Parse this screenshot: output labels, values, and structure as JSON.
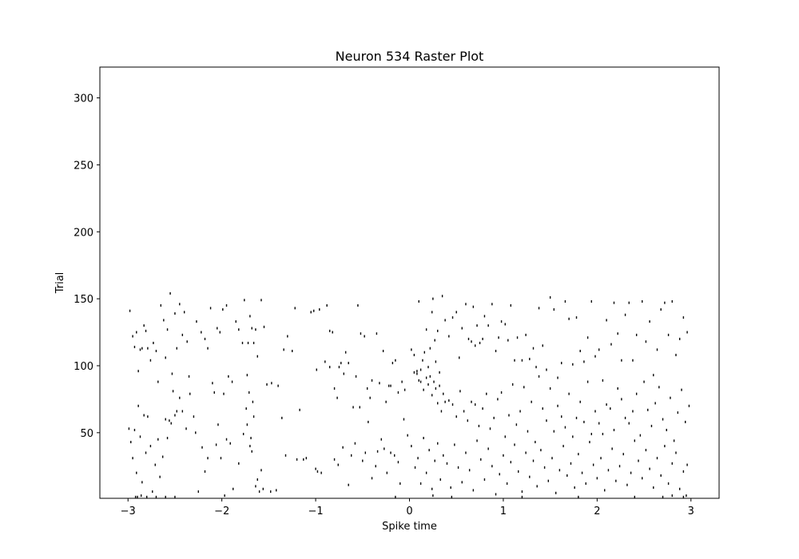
{
  "chart_data": {
    "type": "scatter",
    "subtype": "raster",
    "title": "Neuron 534 Raster Plot",
    "xlabel": "Spike time",
    "ylabel": "Trial",
    "xlim": [
      -3.3,
      3.3
    ],
    "ylim": [
      1,
      323
    ],
    "xticks": [
      -3,
      -2,
      -1,
      0,
      1,
      2,
      3
    ],
    "xtick_labels": [
      "−3",
      "−2",
      "−1",
      "0",
      "1",
      "2",
      "3"
    ],
    "yticks": [
      50,
      100,
      150,
      200,
      250,
      300
    ],
    "ytick_labels": [
      "50",
      "100",
      "150",
      "200",
      "250",
      "300"
    ],
    "grid": false,
    "legend": "none",
    "mark_color": "#000000",
    "trials_shown": 154,
    "spike_time_range": [
      -3,
      3
    ],
    "spikes": [
      [
        -2.98,
        141
      ],
      [
        -2.95,
        122
      ],
      [
        -2.93,
        114
      ],
      [
        -2.91,
        125
      ],
      [
        -2.89,
        96
      ],
      [
        -2.87,
        112
      ],
      [
        -2.85,
        113
      ],
      [
        -2.83,
        130
      ],
      [
        -2.81,
        126
      ],
      [
        -2.79,
        113
      ],
      [
        -2.76,
        104
      ],
      [
        -2.73,
        117
      ],
      [
        -2.7,
        111
      ],
      [
        -2.68,
        88
      ],
      [
        -2.65,
        145
      ],
      [
        -2.62,
        134
      ],
      [
        -2.6,
        106
      ],
      [
        -2.58,
        127
      ],
      [
        -2.55,
        154
      ],
      [
        -2.53,
        94
      ],
      [
        -2.5,
        139
      ],
      [
        -2.48,
        113
      ],
      [
        -2.45,
        146
      ],
      [
        -2.42,
        123
      ],
      [
        -2.4,
        140
      ],
      [
        -2.37,
        118
      ],
      [
        -2.35,
        92
      ],
      [
        -2.3,
        62
      ],
      [
        -2.27,
        133
      ],
      [
        -2.22,
        125
      ],
      [
        -2.18,
        120
      ],
      [
        -2.15,
        113
      ],
      [
        -2.12,
        143
      ],
      [
        -2.08,
        80
      ],
      [
        -2.05,
        128
      ],
      [
        -2.02,
        125
      ],
      [
        -1.99,
        142
      ],
      [
        -1.95,
        145
      ],
      [
        -1.93,
        92
      ],
      [
        -1.89,
        88
      ],
      [
        -1.85,
        133
      ],
      [
        -1.82,
        127
      ],
      [
        -1.78,
        117
      ],
      [
        -1.76,
        149
      ],
      [
        -1.73,
        93
      ],
      [
        -1.72,
        117
      ],
      [
        -1.7,
        137
      ],
      [
        -1.68,
        128
      ],
      [
        -1.66,
        117
      ],
      [
        -1.64,
        127
      ],
      [
        -1.62,
        107
      ],
      [
        -1.58,
        149
      ],
      [
        -1.55,
        129
      ],
      [
        -2.99,
        53
      ],
      [
        -2.97,
        43
      ],
      [
        -2.95,
        31
      ],
      [
        -2.93,
        52
      ],
      [
        -2.91,
        20
      ],
      [
        -2.89,
        70
      ],
      [
        -2.87,
        47
      ],
      [
        -2.85,
        13
      ],
      [
        -2.83,
        63
      ],
      [
        -2.81,
        35
      ],
      [
        -2.79,
        62
      ],
      [
        -2.76,
        40
      ],
      [
        -2.74,
        6
      ],
      [
        -2.71,
        26
      ],
      [
        -2.68,
        45
      ],
      [
        -2.66,
        17
      ],
      [
        -2.63,
        32
      ],
      [
        -2.6,
        60
      ],
      [
        -2.58,
        46
      ],
      [
        -2.56,
        59
      ],
      [
        -2.54,
        57
      ],
      [
        -2.52,
        81
      ],
      [
        -2.5,
        63
      ],
      [
        -2.48,
        66
      ],
      [
        -2.45,
        76
      ],
      [
        -2.42,
        66
      ],
      [
        -2.38,
        53
      ],
      [
        -2.34,
        79
      ],
      [
        -2.28,
        50
      ],
      [
        -2.25,
        6
      ],
      [
        -2.21,
        39
      ],
      [
        -2.18,
        21
      ],
      [
        -2.15,
        31
      ],
      [
        -2.1,
        87
      ],
      [
        -2.06,
        41
      ],
      [
        -2.04,
        56
      ],
      [
        -2.01,
        31
      ],
      [
        -1.98,
        79
      ],
      [
        -1.95,
        45
      ],
      [
        -1.91,
        42
      ],
      [
        -1.88,
        8
      ],
      [
        -1.82,
        27
      ],
      [
        -1.77,
        49
      ],
      [
        -1.74,
        68
      ],
      [
        -1.73,
        56
      ],
      [
        -1.71,
        80
      ],
      [
        -1.7,
        40
      ],
      [
        -1.69,
        46
      ],
      [
        -1.68,
        36
      ],
      [
        -1.67,
        73
      ],
      [
        -1.66,
        62
      ],
      [
        -1.64,
        10
      ],
      [
        -1.62,
        15
      ],
      [
        -1.6,
        6
      ],
      [
        -1.58,
        22
      ],
      [
        -1.56,
        8
      ],
      [
        -1.52,
        86
      ],
      [
        -2.92,
        2
      ],
      [
        -2.9,
        2
      ],
      [
        -2.86,
        3
      ],
      [
        -2.8,
        2
      ],
      [
        -2.7,
        2
      ],
      [
        -2.6,
        2
      ],
      [
        -2.5,
        2
      ],
      [
        -1.97,
        3
      ],
      [
        -1.47,
        87
      ],
      [
        -1.4,
        85
      ],
      [
        -1.34,
        112
      ],
      [
        -1.3,
        122
      ],
      [
        -1.25,
        111
      ],
      [
        -1.22,
        143
      ],
      [
        -1.2,
        30
      ],
      [
        -1.17,
        67
      ],
      [
        -1.13,
        30
      ],
      [
        -1.1,
        31
      ],
      [
        -1.05,
        140
      ],
      [
        -1.02,
        141
      ],
      [
        -0.99,
        97
      ],
      [
        -0.96,
        142
      ],
      [
        -0.9,
        103
      ],
      [
        -0.88,
        145
      ],
      [
        -0.85,
        126
      ],
      [
        -0.82,
        125
      ],
      [
        -0.8,
        83
      ],
      [
        -0.77,
        76
      ],
      [
        -0.75,
        99
      ],
      [
        -0.73,
        102
      ],
      [
        -0.7,
        94
      ],
      [
        -0.68,
        110
      ],
      [
        -0.65,
        102
      ],
      [
        -0.6,
        69
      ],
      [
        -0.57,
        92
      ],
      [
        -0.55,
        145
      ],
      [
        -0.52,
        124
      ],
      [
        -0.48,
        122
      ],
      [
        -0.45,
        83
      ],
      [
        -0.42,
        76
      ],
      [
        -0.4,
        89
      ],
      [
        -0.35,
        124
      ],
      [
        -0.32,
        87
      ],
      [
        -0.28,
        111
      ],
      [
        -0.25,
        73
      ],
      [
        -0.22,
        85
      ],
      [
        -0.2,
        85
      ],
      [
        -0.18,
        102
      ],
      [
        -0.15,
        104
      ],
      [
        -0.12,
        80
      ],
      [
        -0.08,
        88
      ],
      [
        -0.05,
        82
      ],
      [
        -1.48,
        6
      ],
      [
        -1.42,
        7
      ],
      [
        -1.36,
        61
      ],
      [
        -1.32,
        33
      ],
      [
        -1.0,
        23
      ],
      [
        -0.98,
        21
      ],
      [
        -0.94,
        20
      ],
      [
        -0.85,
        99
      ],
      [
        -0.8,
        30
      ],
      [
        -0.76,
        26
      ],
      [
        -0.71,
        39
      ],
      [
        -0.65,
        11
      ],
      [
        -0.62,
        33
      ],
      [
        -0.58,
        42
      ],
      [
        -0.53,
        69
      ],
      [
        -0.5,
        29
      ],
      [
        -0.47,
        35
      ],
      [
        -0.44,
        58
      ],
      [
        -0.4,
        16
      ],
      [
        -0.36,
        25
      ],
      [
        -0.34,
        36
      ],
      [
        -0.3,
        45
      ],
      [
        -0.27,
        38
      ],
      [
        -0.24,
        20
      ],
      [
        -0.2,
        35
      ],
      [
        -0.16,
        33
      ],
      [
        -0.12,
        28
      ],
      [
        -0.1,
        12
      ],
      [
        -0.06,
        60
      ],
      [
        -0.02,
        48
      ],
      [
        -0.15,
        2
      ],
      [
        0.02,
        112
      ],
      [
        0.05,
        108
      ],
      [
        0.08,
        94
      ],
      [
        0.1,
        148
      ],
      [
        0.12,
        88
      ],
      [
        0.14,
        104
      ],
      [
        0.16,
        110
      ],
      [
        0.18,
        127
      ],
      [
        0.2,
        99
      ],
      [
        0.22,
        113
      ],
      [
        0.24,
        140
      ],
      [
        0.25,
        150
      ],
      [
        0.27,
        119
      ],
      [
        0.28,
        103
      ],
      [
        0.3,
        126
      ],
      [
        0.32,
        85
      ],
      [
        0.35,
        152
      ],
      [
        0.38,
        134
      ],
      [
        0.42,
        122
      ],
      [
        0.46,
        136
      ],
      [
        0.5,
        140
      ],
      [
        0.53,
        106
      ],
      [
        0.56,
        128
      ],
      [
        0.6,
        146
      ],
      [
        0.63,
        120
      ],
      [
        0.66,
        118
      ],
      [
        0.68,
        144
      ],
      [
        0.7,
        115
      ],
      [
        0.72,
        130
      ],
      [
        0.75,
        117
      ],
      [
        0.78,
        120
      ],
      [
        0.8,
        137
      ],
      [
        0.84,
        130
      ],
      [
        0.88,
        146
      ],
      [
        0.92,
        111
      ],
      [
        0.95,
        121
      ],
      [
        0.98,
        133
      ],
      [
        1.02,
        131
      ],
      [
        1.05,
        119
      ],
      [
        1.08,
        145
      ],
      [
        1.12,
        104
      ],
      [
        1.15,
        121
      ],
      [
        1.2,
        104
      ],
      [
        1.24,
        123
      ],
      [
        1.28,
        105
      ],
      [
        1.32,
        113
      ],
      [
        1.35,
        99
      ],
      [
        1.38,
        143
      ],
      [
        1.42,
        115
      ],
      [
        1.46,
        97
      ],
      [
        1.5,
        151
      ],
      [
        1.54,
        142
      ],
      [
        1.58,
        91
      ],
      [
        1.62,
        102
      ],
      [
        1.66,
        148
      ],
      [
        1.7,
        135
      ],
      [
        1.74,
        101
      ],
      [
        1.78,
        136
      ],
      [
        1.82,
        111
      ],
      [
        1.86,
        103
      ],
      [
        1.9,
        121
      ],
      [
        1.94,
        148
      ],
      [
        1.98,
        107
      ],
      [
        2.02,
        112
      ],
      [
        2.06,
        89
      ],
      [
        2.1,
        134
      ],
      [
        2.15,
        116
      ],
      [
        2.18,
        147
      ],
      [
        2.22,
        124
      ],
      [
        2.26,
        104
      ],
      [
        2.3,
        138
      ],
      [
        2.34,
        147
      ],
      [
        2.38,
        104
      ],
      [
        2.42,
        123
      ],
      [
        2.48,
        148
      ],
      [
        2.52,
        118
      ],
      [
        2.56,
        133
      ],
      [
        2.6,
        93
      ],
      [
        2.64,
        112
      ],
      [
        2.68,
        142
      ],
      [
        2.72,
        147
      ],
      [
        2.76,
        123
      ],
      [
        2.8,
        148
      ],
      [
        2.84,
        108
      ],
      [
        2.88,
        120
      ],
      [
        2.92,
        136
      ],
      [
        2.96,
        125
      ],
      [
        0.05,
        95
      ],
      [
        0.08,
        96
      ],
      [
        0.1,
        89
      ],
      [
        0.12,
        97
      ],
      [
        0.15,
        82
      ],
      [
        0.18,
        91
      ],
      [
        0.2,
        86
      ],
      [
        0.22,
        92
      ],
      [
        0.24,
        78
      ],
      [
        0.26,
        88
      ],
      [
        0.28,
        83
      ],
      [
        0.3,
        72
      ],
      [
        0.32,
        95
      ],
      [
        0.34,
        66
      ],
      [
        0.36,
        79
      ],
      [
        0.38,
        73
      ],
      [
        0.42,
        74
      ],
      [
        0.46,
        71
      ],
      [
        0.5,
        62
      ],
      [
        0.54,
        81
      ],
      [
        0.58,
        66
      ],
      [
        0.62,
        59
      ],
      [
        0.66,
        73
      ],
      [
        0.7,
        71
      ],
      [
        0.74,
        55
      ],
      [
        0.78,
        68
      ],
      [
        0.82,
        79
      ],
      [
        0.86,
        53
      ],
      [
        0.9,
        61
      ],
      [
        0.94,
        75
      ],
      [
        0.98,
        80
      ],
      [
        1.02,
        47
      ],
      [
        1.06,
        63
      ],
      [
        1.1,
        86
      ],
      [
        1.14,
        56
      ],
      [
        1.18,
        66
      ],
      [
        1.22,
        84
      ],
      [
        1.26,
        51
      ],
      [
        1.3,
        73
      ],
      [
        1.34,
        43
      ],
      [
        1.38,
        92
      ],
      [
        1.42,
        68
      ],
      [
        1.46,
        59
      ],
      [
        1.5,
        83
      ],
      [
        1.54,
        51
      ],
      [
        1.58,
        70
      ],
      [
        1.62,
        62
      ],
      [
        1.66,
        54
      ],
      [
        1.7,
        79
      ],
      [
        1.74,
        47
      ],
      [
        1.78,
        61
      ],
      [
        1.82,
        73
      ],
      [
        1.86,
        58
      ],
      [
        1.9,
        88
      ],
      [
        1.94,
        49
      ],
      [
        1.98,
        66
      ],
      [
        2.02,
        57
      ],
      [
        2.06,
        49
      ],
      [
        2.1,
        71
      ],
      [
        2.14,
        68
      ],
      [
        2.18,
        52
      ],
      [
        2.22,
        83
      ],
      [
        2.26,
        75
      ],
      [
        2.3,
        61
      ],
      [
        2.34,
        57
      ],
      [
        2.38,
        66
      ],
      [
        2.42,
        79
      ],
      [
        2.46,
        48
      ],
      [
        2.5,
        88
      ],
      [
        2.54,
        67
      ],
      [
        2.58,
        55
      ],
      [
        2.62,
        72
      ],
      [
        2.66,
        84
      ],
      [
        2.7,
        60
      ],
      [
        2.74,
        52
      ],
      [
        2.78,
        76
      ],
      [
        2.82,
        44
      ],
      [
        2.86,
        65
      ],
      [
        2.9,
        82
      ],
      [
        2.94,
        58
      ],
      [
        2.98,
        70
      ],
      [
        0.02,
        40
      ],
      [
        0.06,
        24
      ],
      [
        0.09,
        31
      ],
      [
        0.12,
        12
      ],
      [
        0.15,
        46
      ],
      [
        0.18,
        20
      ],
      [
        0.21,
        37
      ],
      [
        0.24,
        8
      ],
      [
        0.27,
        29
      ],
      [
        0.3,
        42
      ],
      [
        0.33,
        15
      ],
      [
        0.36,
        33
      ],
      [
        0.4,
        27
      ],
      [
        0.44,
        9
      ],
      [
        0.48,
        41
      ],
      [
        0.52,
        24
      ],
      [
        0.56,
        13
      ],
      [
        0.6,
        35
      ],
      [
        0.64,
        22
      ],
      [
        0.68,
        7
      ],
      [
        0.72,
        44
      ],
      [
        0.76,
        30
      ],
      [
        0.8,
        15
      ],
      [
        0.84,
        38
      ],
      [
        0.88,
        25
      ],
      [
        0.92,
        4
      ],
      [
        0.96,
        19
      ],
      [
        1.0,
        33
      ],
      [
        1.04,
        12
      ],
      [
        1.08,
        28
      ],
      [
        1.12,
        41
      ],
      [
        1.16,
        21
      ],
      [
        1.2,
        6
      ],
      [
        1.24,
        35
      ],
      [
        1.28,
        17
      ],
      [
        1.32,
        29
      ],
      [
        1.36,
        10
      ],
      [
        1.4,
        37
      ],
      [
        1.44,
        24
      ],
      [
        1.48,
        14
      ],
      [
        1.52,
        31
      ],
      [
        1.56,
        5
      ],
      [
        1.6,
        22
      ],
      [
        1.64,
        40
      ],
      [
        1.68,
        18
      ],
      [
        1.72,
        27
      ],
      [
        1.76,
        9
      ],
      [
        1.8,
        34
      ],
      [
        1.84,
        20
      ],
      [
        1.88,
        12
      ],
      [
        1.92,
        43
      ],
      [
        1.96,
        26
      ],
      [
        2.0,
        16
      ],
      [
        2.04,
        31
      ],
      [
        2.08,
        7
      ],
      [
        2.12,
        22
      ],
      [
        2.16,
        38
      ],
      [
        2.2,
        14
      ],
      [
        2.24,
        25
      ],
      [
        2.28,
        34
      ],
      [
        2.32,
        11
      ],
      [
        2.36,
        20
      ],
      [
        2.4,
        44
      ],
      [
        2.44,
        29
      ],
      [
        2.48,
        16
      ],
      [
        2.52,
        37
      ],
      [
        2.56,
        23
      ],
      [
        2.6,
        9
      ],
      [
        2.64,
        31
      ],
      [
        2.68,
        18
      ],
      [
        2.72,
        40
      ],
      [
        2.76,
        12
      ],
      [
        2.8,
        27
      ],
      [
        2.84,
        35
      ],
      [
        2.88,
        8
      ],
      [
        2.92,
        21
      ],
      [
        2.96,
        26
      ],
      [
        0.25,
        3
      ],
      [
        0.45,
        2
      ],
      [
        1.2,
        2
      ],
      [
        1.8,
        2
      ],
      [
        2.4,
        2
      ],
      [
        2.7,
        2
      ],
      [
        2.8,
        3
      ],
      [
        2.92,
        2
      ],
      [
        2.95,
        3
      ]
    ]
  }
}
